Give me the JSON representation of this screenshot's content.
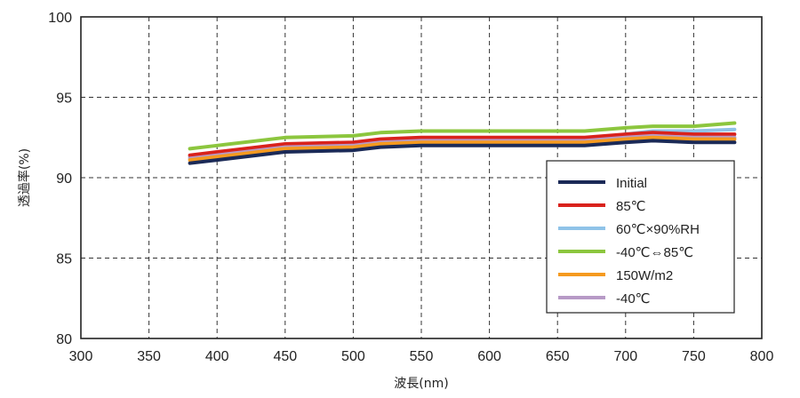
{
  "chart_data": {
    "type": "line",
    "title": "",
    "xlabel": "波長(nm)",
    "ylabel": "透過率(%)",
    "xlim": [
      300,
      800
    ],
    "ylim": [
      80,
      100
    ],
    "xticks": [
      300,
      350,
      400,
      450,
      500,
      550,
      600,
      650,
      700,
      750,
      800
    ],
    "yticks": [
      80,
      85,
      90,
      95,
      100
    ],
    "grid": true,
    "legend": "right",
    "x": [
      380,
      400,
      450,
      500,
      520,
      550,
      600,
      650,
      670,
      700,
      720,
      750,
      780
    ],
    "series": [
      {
        "name": "Initial",
        "color": "#1b2a57",
        "values": [
          90.9,
          91.1,
          91.6,
          91.7,
          91.9,
          92.0,
          92.0,
          92.0,
          92.0,
          92.2,
          92.3,
          92.2,
          92.2
        ]
      },
      {
        "name": "85℃",
        "color": "#d9221c",
        "values": [
          91.4,
          91.6,
          92.1,
          92.2,
          92.4,
          92.5,
          92.5,
          92.5,
          92.5,
          92.7,
          92.8,
          92.7,
          92.7
        ]
      },
      {
        "name": "60℃×90%RH",
        "color": "#8fc3e8",
        "values": [
          91.3,
          91.5,
          92.0,
          92.1,
          92.3,
          92.4,
          92.4,
          92.4,
          92.4,
          92.7,
          92.9,
          92.9,
          93.0
        ]
      },
      {
        "name": "-40℃⇔85℃",
        "color": "#8cc63e",
        "values": [
          91.8,
          92.0,
          92.5,
          92.6,
          92.8,
          92.9,
          92.9,
          92.9,
          92.9,
          93.1,
          93.2,
          93.2,
          93.4
        ]
      },
      {
        "name": "150W/m2",
        "color": "#f59a1f",
        "values": [
          91.1,
          91.3,
          91.8,
          91.9,
          92.1,
          92.2,
          92.2,
          92.2,
          92.2,
          92.4,
          92.5,
          92.4,
          92.4
        ]
      },
      {
        "name": "-40℃",
        "color": "#b79ac6",
        "values": [
          91.2,
          91.4,
          91.9,
          92.0,
          92.2,
          92.3,
          92.3,
          92.3,
          92.3,
          92.5,
          92.6,
          92.5,
          92.5
        ]
      }
    ]
  }
}
